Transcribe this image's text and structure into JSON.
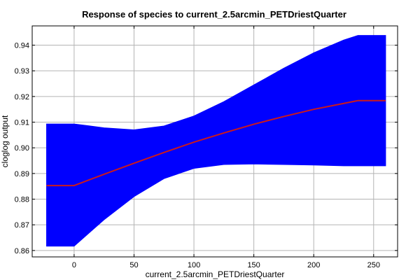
{
  "chart_data": {
    "type": "line",
    "title": "Response of species to current_2.5arcmin_PETDriestQuarter",
    "xlabel": "current_2.5arcmin_PETDriestQuarter",
    "ylabel": "cloglog output",
    "xlim": [
      -35,
      270
    ],
    "ylim": [
      0.8575,
      0.9475
    ],
    "xticks": [
      0,
      50,
      100,
      150,
      200,
      250
    ],
    "yticks": [
      0.86,
      0.87,
      0.88,
      0.89,
      0.9,
      0.91,
      0.92,
      0.93,
      0.94
    ],
    "ytick_labels": [
      "0.86",
      "0.87",
      "0.88",
      "0.89",
      "0.90",
      "0.91",
      "0.92",
      "0.93",
      "0.94"
    ],
    "grid": true,
    "colors": {
      "band": "#0000ff",
      "line": "#cc1a1a"
    },
    "series": [
      {
        "style": "line",
        "x": [
          -23,
          0,
          25,
          50,
          75,
          100,
          125,
          150,
          175,
          200,
          225,
          237,
          260
        ],
        "y": [
          0.8853,
          0.8853,
          0.8897,
          0.894,
          0.8982,
          0.9022,
          0.9058,
          0.9092,
          0.9122,
          0.915,
          0.9173,
          0.9184,
          0.9184
        ]
      },
      {
        "style": "band",
        "x": [
          -23,
          0,
          25,
          50,
          75,
          100,
          125,
          150,
          175,
          200,
          225,
          237,
          260
        ],
        "lower": [
          0.8617,
          0.8617,
          0.872,
          0.881,
          0.888,
          0.892,
          0.8935,
          0.8937,
          0.8935,
          0.8933,
          0.893,
          0.893,
          0.893
        ],
        "upper": [
          0.9093,
          0.9093,
          0.9078,
          0.907,
          0.9085,
          0.9124,
          0.918,
          0.9245,
          0.931,
          0.937,
          0.942,
          0.9438,
          0.9438
        ]
      }
    ]
  }
}
